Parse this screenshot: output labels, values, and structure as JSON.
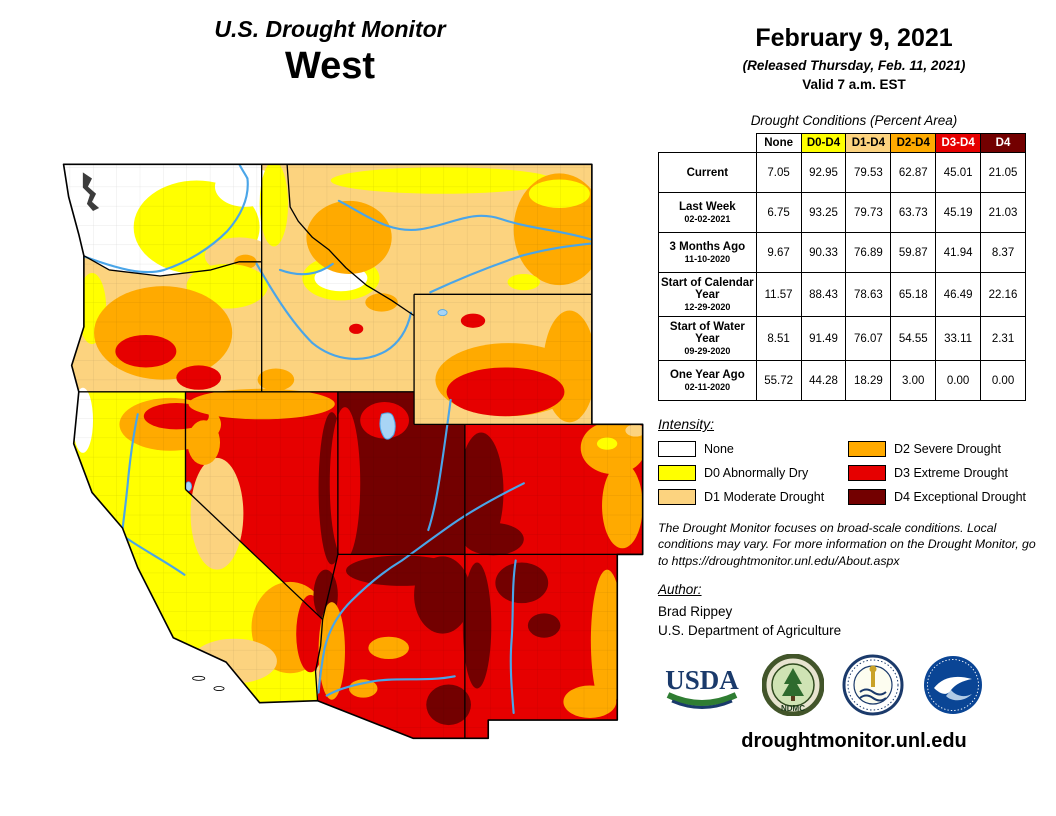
{
  "title": {
    "line1": "U.S. Drought Monitor",
    "line2": "West"
  },
  "date": {
    "main": "February 9, 2021",
    "released": "(Released Thursday, Feb. 11, 2021)",
    "valid": "Valid 7 a.m. EST"
  },
  "table": {
    "caption": "Drought Conditions (Percent Area)",
    "columns": [
      {
        "label": "None",
        "bg": "#ffffff",
        "fg": "#000000"
      },
      {
        "label": "D0-D4",
        "bg": "#ffff00",
        "fg": "#000000"
      },
      {
        "label": "D1-D4",
        "bg": "#fcd37f",
        "fg": "#000000"
      },
      {
        "label": "D2-D4",
        "bg": "#ffaa00",
        "fg": "#000000"
      },
      {
        "label": "D3-D4",
        "bg": "#e60000",
        "fg": "#ffffff"
      },
      {
        "label": "D4",
        "bg": "#730000",
        "fg": "#ffffff"
      }
    ],
    "rows": [
      {
        "label": "Current",
        "date": "",
        "values": [
          "7.05",
          "92.95",
          "79.53",
          "62.87",
          "45.01",
          "21.05"
        ]
      },
      {
        "label": "Last Week",
        "date": "02-02-2021",
        "values": [
          "6.75",
          "93.25",
          "79.73",
          "63.73",
          "45.19",
          "21.03"
        ]
      },
      {
        "label": "3 Months Ago",
        "date": "11-10-2020",
        "values": [
          "9.67",
          "90.33",
          "76.89",
          "59.87",
          "41.94",
          "8.37"
        ]
      },
      {
        "label": "Start of Calendar Year",
        "date": "12-29-2020",
        "values": [
          "11.57",
          "88.43",
          "78.63",
          "65.18",
          "46.49",
          "22.16"
        ]
      },
      {
        "label": "Start of Water Year",
        "date": "09-29-2020",
        "values": [
          "8.51",
          "91.49",
          "76.07",
          "54.55",
          "33.11",
          "2.31"
        ]
      },
      {
        "label": "One Year Ago",
        "date": "02-11-2020",
        "values": [
          "55.72",
          "44.28",
          "18.29",
          "3.00",
          "0.00",
          "0.00"
        ]
      }
    ]
  },
  "chart_data": {
    "type": "table",
    "title": "Drought Conditions (Percent Area)",
    "categories": [
      "None",
      "D0-D4",
      "D1-D4",
      "D2-D4",
      "D3-D4",
      "D4"
    ],
    "series": [
      {
        "name": "Current",
        "values": [
          7.05,
          92.95,
          79.53,
          62.87,
          45.01,
          21.05
        ]
      },
      {
        "name": "Last Week 02-02-2021",
        "values": [
          6.75,
          93.25,
          79.73,
          63.73,
          45.19,
          21.03
        ]
      },
      {
        "name": "3 Months Ago 11-10-2020",
        "values": [
          9.67,
          90.33,
          76.89,
          59.87,
          41.94,
          8.37
        ]
      },
      {
        "name": "Start of Calendar Year 12-29-2020",
        "values": [
          11.57,
          88.43,
          78.63,
          65.18,
          46.49,
          22.16
        ]
      },
      {
        "name": "Start of Water Year 09-29-2020",
        "values": [
          8.51,
          91.49,
          76.07,
          54.55,
          33.11,
          2.31
        ]
      },
      {
        "name": "One Year Ago 02-11-2020",
        "values": [
          55.72,
          44.28,
          18.29,
          3.0,
          0.0,
          0.0
        ]
      }
    ]
  },
  "legend": {
    "title": "Intensity:",
    "items": [
      {
        "label": "None",
        "color": "#ffffff"
      },
      {
        "label": "D0 Abnormally Dry",
        "color": "#ffff00"
      },
      {
        "label": "D1 Moderate Drought",
        "color": "#fcd37f"
      },
      {
        "label": "D2 Severe Drought",
        "color": "#ffaa00"
      },
      {
        "label": "D3 Extreme Drought",
        "color": "#e60000"
      },
      {
        "label": "D4 Exceptional Drought",
        "color": "#730000"
      }
    ]
  },
  "disclaimer": {
    "text": "The Drought Monitor focuses on broad-scale conditions. Local conditions may vary. For more information on the Drought Monitor, go to https://droughtmonitor.unl.edu/About.aspx"
  },
  "author": {
    "title": "Author:",
    "name": "Brad Rippey",
    "org": "U.S. Department of Agriculture"
  },
  "logos": [
    {
      "name": "USDA"
    },
    {
      "name": "NDMC"
    },
    {
      "name": "U.S. Department of Commerce"
    },
    {
      "name": "NOAA"
    }
  ],
  "footer": {
    "url": "droughtmonitor.unl.edu"
  }
}
